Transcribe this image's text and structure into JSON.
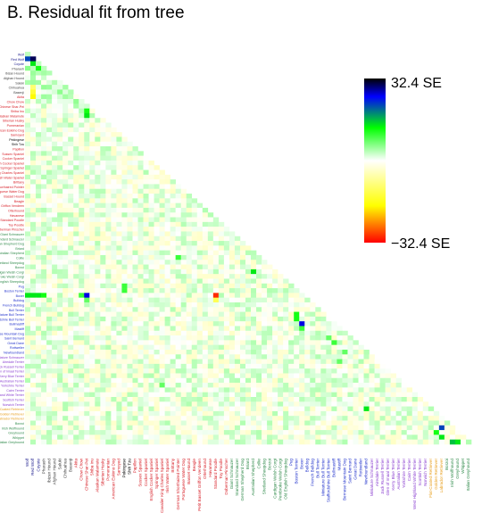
{
  "title": "B. Residual fit from tree",
  "chart_data": {
    "type": "heatmap",
    "title": "B. Residual fit from tree",
    "layout": "lower-triangle",
    "color_scale": {
      "min_label": "−32.4 SE",
      "max_label": "32.4 SE",
      "min": -32.4,
      "max": 32.4,
      "colors": [
        "#ff0000",
        "#ffff00",
        "#ffffff",
        "#00ff00",
        "#0000ff",
        "#000000"
      ]
    },
    "column_labels": [
      {
        "text": "Wolf",
        "color": "#1a1a8c"
      },
      {
        "text": "Red Wolf",
        "color": "#1a1a8c"
      },
      {
        "text": "Coyote",
        "color": "#1a1a8c"
      },
      {
        "text": "Pharaoh",
        "color": "#444444"
      },
      {
        "text": "Ibizan Hound",
        "color": "#444444"
      },
      {
        "text": "Afghan Hound",
        "color": "#444444"
      },
      {
        "text": "Saluki",
        "color": "#444444"
      },
      {
        "text": "Chihuahua",
        "color": "#444444"
      },
      {
        "text": "Basenji",
        "color": "#444444"
      },
      {
        "text": "Akita",
        "color": "#d8222a"
      },
      {
        "text": "Chow Chow",
        "color": "#d8222a"
      },
      {
        "text": "Chinese Shar-Pei",
        "color": "#d8222a"
      },
      {
        "text": "Shiba Inu",
        "color": "#d8222a"
      },
      {
        "text": "Alaskan Malamute",
        "color": "#d8222a"
      },
      {
        "text": "Siberian Husky",
        "color": "#d8222a"
      },
      {
        "text": "Pomeranian",
        "color": "#d8222a"
      },
      {
        "text": "American Eskimo Dog",
        "color": "#d8222a"
      },
      {
        "text": "Samoyed",
        "color": "#d8222a"
      },
      {
        "text": "Pekingese",
        "color": "#000000"
      },
      {
        "text": "Shih Tzu",
        "color": "#000000"
      },
      {
        "text": "Papillon",
        "color": "#d8222a"
      },
      {
        "text": "Sussex Spaniel",
        "color": "#d8222a"
      },
      {
        "text": "Cocker Spaniel",
        "color": "#d8222a"
      },
      {
        "text": "English Cocker Spaniel",
        "color": "#d8222a"
      },
      {
        "text": "Springer Spaniel",
        "color": "#d8222a"
      },
      {
        "text": "Cavalier King Charles Spaniel",
        "color": "#d8222a"
      },
      {
        "text": "Irish Water Spaniel",
        "color": "#d8222a"
      },
      {
        "text": "Brittany",
        "color": "#d8222a"
      },
      {
        "text": "German Shorthaired Pointer",
        "color": "#d8222a"
      },
      {
        "text": "Portuguese Water Dog",
        "color": "#d8222a"
      },
      {
        "text": "Basset Hound",
        "color": "#d8222a"
      },
      {
        "text": "Beagle",
        "color": "#d8222a"
      },
      {
        "text": "Petit Basset Griffon Vendeen",
        "color": "#d8222a"
      },
      {
        "text": "Otterhound",
        "color": "#d8222a"
      },
      {
        "text": "Havanese",
        "color": "#d8222a"
      },
      {
        "text": "Standard Poodle",
        "color": "#d8222a"
      },
      {
        "text": "Toy Poodle",
        "color": "#d8222a"
      },
      {
        "text": "Doberman Pinscher",
        "color": "#d8222a"
      },
      {
        "text": "Giant Schnauzer",
        "color": "#2f8a4a"
      },
      {
        "text": "Standard Schnauzer",
        "color": "#2f8a4a"
      },
      {
        "text": "German Shepherd Dog",
        "color": "#2f8a4a"
      },
      {
        "text": "Briard",
        "color": "#2f8a4a"
      },
      {
        "text": "Australian Shepherd",
        "color": "#2f8a4a"
      },
      {
        "text": "Collie",
        "color": "#2f8a4a"
      },
      {
        "text": "Shetland Sheepdog",
        "color": "#2f8a4a"
      },
      {
        "text": "Borzoi",
        "color": "#2f8a4a"
      },
      {
        "text": "Cardigan Welsh Corgi",
        "color": "#2f8a4a"
      },
      {
        "text": "Pembroke Welsh Corgi",
        "color": "#2f8a4a"
      },
      {
        "text": "Old English Sheepdog",
        "color": "#2f8a4a"
      },
      {
        "text": "Pug",
        "color": "#2233cc"
      },
      {
        "text": "Boston Terrier",
        "color": "#2233cc"
      },
      {
        "text": "Boxer",
        "color": "#2233cc"
      },
      {
        "text": "Bulldog",
        "color": "#2233cc"
      },
      {
        "text": "French Bulldog",
        "color": "#2233cc"
      },
      {
        "text": "Bull Terrier",
        "color": "#2233cc"
      },
      {
        "text": "Miniature Bull Terrier",
        "color": "#2233cc"
      },
      {
        "text": "Staffordshire Bull Terrier",
        "color": "#2233cc"
      },
      {
        "text": "Bullmastiff",
        "color": "#2233cc"
      },
      {
        "text": "Mastiff",
        "color": "#2233cc"
      },
      {
        "text": "Bernese Mountain Dog",
        "color": "#2233cc"
      },
      {
        "text": "Saint Bernard",
        "color": "#2233cc"
      },
      {
        "text": "Great Dane",
        "color": "#2233cc"
      },
      {
        "text": "Rottweiler",
        "color": "#2233cc"
      },
      {
        "text": "Newfoundland",
        "color": "#2233cc"
      },
      {
        "text": "Miniature Schnauzer",
        "color": "#8a3fd0"
      },
      {
        "text": "Airedale Terrier",
        "color": "#8a3fd0"
      },
      {
        "text": "Jack Russell Terrier",
        "color": "#8a3fd0"
      },
      {
        "text": "Glen of Imaal Terrier",
        "color": "#8a3fd0"
      },
      {
        "text": "Kerry Blue Terrier",
        "color": "#8a3fd0"
      },
      {
        "text": "Australian Terrier",
        "color": "#8a3fd0"
      },
      {
        "text": "Yorkshire Terrier",
        "color": "#8a3fd0"
      },
      {
        "text": "Cairn Terrier",
        "color": "#8a3fd0"
      },
      {
        "text": "West Highland White Terrier",
        "color": "#8a3fd0"
      },
      {
        "text": "Scottish Terrier",
        "color": "#8a3fd0"
      },
      {
        "text": "Norwich Terrier",
        "color": "#8a3fd0"
      },
      {
        "text": "Flat-Coated Retriever",
        "color": "#e8a020"
      },
      {
        "text": "Golden Retriever",
        "color": "#e8a020"
      },
      {
        "text": "Labrador Retriever",
        "color": "#e8a020"
      },
      {
        "text": "Borzoi",
        "color": "#2f8a4a"
      },
      {
        "text": "Irish Wolfhound",
        "color": "#2f8a4a"
      },
      {
        "text": "Greyhound",
        "color": "#2f8a4a"
      },
      {
        "text": "Whippet",
        "color": "#2f8a4a"
      },
      {
        "text": "Italian Greyhound",
        "color": "#2f8a4a"
      }
    ],
    "strong_cells": [
      {
        "row": 1,
        "col": 0,
        "value": 22
      },
      {
        "row": 1,
        "col": 1,
        "value": 30
      },
      {
        "row": 1,
        "col": 2,
        "value": 24
      },
      {
        "row": 2,
        "col": 1,
        "value": 14
      },
      {
        "row": 3,
        "col": 2,
        "value": 12
      },
      {
        "row": 7,
        "col": 1,
        "value": -10
      },
      {
        "row": 8,
        "col": 1,
        "value": -14
      },
      {
        "row": 9,
        "col": 1,
        "value": -18
      },
      {
        "row": 8,
        "col": 11,
        "value": 10
      },
      {
        "row": 9,
        "col": 11,
        "value": 12
      },
      {
        "row": 11,
        "col": 17,
        "value": 28
      },
      {
        "row": 12,
        "col": 16,
        "value": 10
      },
      {
        "row": 12,
        "col": 11,
        "value": 12
      },
      {
        "row": 13,
        "col": 11,
        "value": 14
      },
      {
        "row": 14,
        "col": 17,
        "value": 6
      },
      {
        "row": 43,
        "col": 28,
        "value": 10
      },
      {
        "row": 46,
        "col": 42,
        "value": 14
      },
      {
        "row": 49,
        "col": 18,
        "value": 10
      },
      {
        "row": 50,
        "col": 18,
        "value": 10
      },
      {
        "row": 51,
        "col": 0,
        "value": 14
      },
      {
        "row": 51,
        "col": 1,
        "value": 14
      },
      {
        "row": 51,
        "col": 2,
        "value": 14
      },
      {
        "row": 51,
        "col": 3,
        "value": 12
      },
      {
        "row": 51,
        "col": 10,
        "value": 10
      },
      {
        "row": 51,
        "col": 11,
        "value": 26
      },
      {
        "row": 52,
        "col": 11,
        "value": 8
      },
      {
        "row": 51,
        "col": 35,
        "value": -30
      },
      {
        "row": 52,
        "col": 35,
        "value": -12
      },
      {
        "row": 55,
        "col": 50,
        "value": 12
      },
      {
        "row": 56,
        "col": 50,
        "value": 12
      },
      {
        "row": 57,
        "col": 51,
        "value": 26
      },
      {
        "row": 58,
        "col": 51,
        "value": 10
      },
      {
        "row": 60,
        "col": 56,
        "value": 8
      },
      {
        "row": 61,
        "col": 57,
        "value": 10
      },
      {
        "row": 63,
        "col": 59,
        "value": 8
      },
      {
        "row": 65,
        "col": 58,
        "value": 8
      },
      {
        "row": 70,
        "col": 25,
        "value": 8
      },
      {
        "row": 75,
        "col": 63,
        "value": 14
      },
      {
        "row": 79,
        "col": 77,
        "value": 22
      },
      {
        "row": 80,
        "col": 76,
        "value": 12
      },
      {
        "row": 81,
        "col": 77,
        "value": 14
      },
      {
        "row": 82,
        "col": 79,
        "value": 16
      },
      {
        "row": 82,
        "col": 80,
        "value": 14
      }
    ]
  }
}
